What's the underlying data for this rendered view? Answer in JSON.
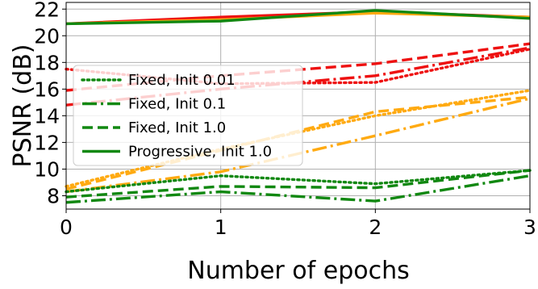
{
  "chart_data": {
    "type": "line",
    "xlabel": "Number of epochs",
    "ylabel": "PSNR (dB)",
    "xlim": [
      0,
      3
    ],
    "ylim": [
      7,
      22.5
    ],
    "x": [
      0,
      1,
      2,
      3
    ],
    "xticks": [
      "0",
      "1",
      "2",
      "3"
    ],
    "yticks": [
      "8",
      "10",
      "12",
      "14",
      "16",
      "18",
      "20",
      "22"
    ],
    "grid": true,
    "legend_position": "center-left",
    "legend": [
      {
        "label": "Fixed, Init 0.01",
        "style": "dotted"
      },
      {
        "label": "Fixed, Init 0.1",
        "style": "dashdot"
      },
      {
        "label": "Fixed, Init 1.0",
        "style": "dashed"
      },
      {
        "label": "Progressive, Init 1.0",
        "style": "solid"
      }
    ],
    "colors": {
      "red": "#ee1111",
      "orange": "#ffaa11",
      "green": "#118811"
    },
    "series": [
      {
        "color": "red",
        "style": "solid",
        "values": [
          20.9,
          21.4,
          21.8,
          21.4
        ]
      },
      {
        "color": "orange",
        "style": "solid",
        "values": [
          20.9,
          21.2,
          21.7,
          21.4
        ]
      },
      {
        "color": "green",
        "style": "solid",
        "values": [
          20.9,
          21.1,
          21.9,
          21.3
        ]
      },
      {
        "color": "red",
        "style": "dotted",
        "values": [
          17.5,
          16.4,
          16.5,
          19.0
        ]
      },
      {
        "color": "red",
        "style": "dashed",
        "values": [
          15.9,
          17.0,
          17.9,
          19.4
        ]
      },
      {
        "color": "red",
        "style": "dashdot",
        "values": [
          14.8,
          16.0,
          17.0,
          19.1
        ]
      },
      {
        "color": "orange",
        "style": "dotted",
        "values": [
          8.7,
          11.5,
          14.0,
          15.9
        ]
      },
      {
        "color": "orange",
        "style": "dashed",
        "values": [
          8.5,
          11.4,
          14.3,
          15.4
        ]
      },
      {
        "color": "orange",
        "style": "dashdot",
        "values": [
          8.3,
          9.8,
          12.5,
          15.3
        ]
      },
      {
        "color": "green",
        "style": "dotted",
        "values": [
          8.3,
          9.5,
          8.9,
          9.9
        ]
      },
      {
        "color": "green",
        "style": "dashed",
        "values": [
          7.9,
          8.7,
          8.6,
          9.9
        ]
      },
      {
        "color": "green",
        "style": "dashdot",
        "values": [
          7.5,
          8.3,
          7.6,
          9.5
        ]
      }
    ]
  }
}
